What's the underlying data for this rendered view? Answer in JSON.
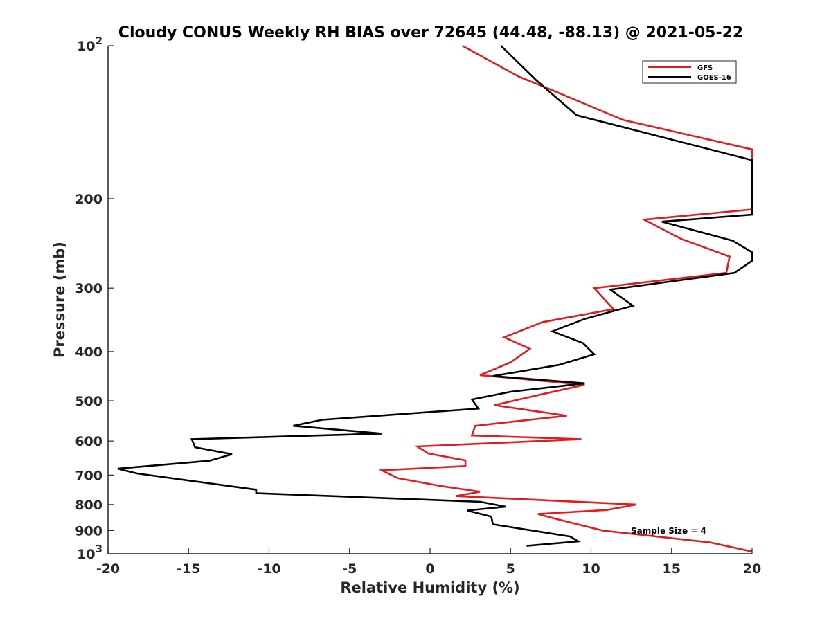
{
  "chart_data": {
    "type": "line",
    "title": "Cloudy CONUS Weekly RH BIAS over 72645 (44.48, -88.13) @ 2021-05-22",
    "xlabel": "Relative Humidity (%)",
    "ylabel": "Pressure (mb)",
    "xlim": [
      -20,
      20
    ],
    "ylim": [
      100,
      1000
    ],
    "yscale": "log",
    "y_reversed": true,
    "x_ticks": [
      "-20",
      "-15",
      "-10",
      "-5",
      "0",
      "5",
      "10",
      "15",
      "20"
    ],
    "y_ticks": [
      {
        "value": 100,
        "base": "10",
        "exp": "2"
      },
      {
        "value": 200,
        "base": "200",
        "exp": ""
      },
      {
        "value": 300,
        "base": "300",
        "exp": ""
      },
      {
        "value": 400,
        "base": "400",
        "exp": ""
      },
      {
        "value": 500,
        "base": "500",
        "exp": ""
      },
      {
        "value": 600,
        "base": "600",
        "exp": ""
      },
      {
        "value": 700,
        "base": "700",
        "exp": ""
      },
      {
        "value": 800,
        "base": "800",
        "exp": ""
      },
      {
        "value": 900,
        "base": "900",
        "exp": ""
      },
      {
        "value": 1000,
        "base": "10",
        "exp": "3"
      }
    ],
    "grid": false,
    "legend_position": "top-right",
    "annotation": "Sample Size = 4",
    "series": [
      {
        "name": "GFS",
        "color": "#e41a1c",
        "points": [
          [
            2.0,
            100
          ],
          [
            5.5,
            115
          ],
          [
            7.5,
            122
          ],
          [
            12.0,
            140
          ],
          [
            20.0,
            160
          ],
          [
            20.0,
            210
          ],
          [
            13.3,
            220
          ],
          [
            15.6,
            240
          ],
          [
            18.6,
            260
          ],
          [
            18.4,
            280
          ],
          [
            10.2,
            300
          ],
          [
            11.4,
            330
          ],
          [
            7.0,
            350
          ],
          [
            4.6,
            375
          ],
          [
            6.2,
            395
          ],
          [
            5.0,
            420
          ],
          [
            3.1,
            445
          ],
          [
            9.6,
            465
          ],
          [
            7.0,
            485
          ],
          [
            4.0,
            510
          ],
          [
            8.5,
            535
          ],
          [
            2.8,
            560
          ],
          [
            2.6,
            585
          ],
          [
            9.4,
            595
          ],
          [
            -0.8,
            615
          ],
          [
            -0.1,
            635
          ],
          [
            2.2,
            655
          ],
          [
            2.2,
            672
          ],
          [
            -3.0,
            685
          ],
          [
            -2.0,
            710
          ],
          [
            0.6,
            735
          ],
          [
            3.1,
            755
          ],
          [
            1.6,
            770
          ],
          [
            12.8,
            800
          ],
          [
            11.0,
            820
          ],
          [
            6.7,
            835
          ],
          [
            7.6,
            850
          ],
          [
            10.7,
            900
          ],
          [
            17.4,
            950
          ],
          [
            20.0,
            990
          ]
        ]
      },
      {
        "name": "GOES-16",
        "color": "#000000",
        "points": [
          [
            4.4,
            100
          ],
          [
            6.6,
            117
          ],
          [
            9.1,
            137
          ],
          [
            20.0,
            168
          ],
          [
            20.0,
            215
          ],
          [
            14.4,
            222
          ],
          [
            18.8,
            242
          ],
          [
            20.0,
            255
          ],
          [
            20.0,
            265
          ],
          [
            18.9,
            280
          ],
          [
            11.2,
            302
          ],
          [
            12.6,
            325
          ],
          [
            9.6,
            345
          ],
          [
            7.6,
            365
          ],
          [
            9.5,
            385
          ],
          [
            10.2,
            405
          ],
          [
            8.0,
            425
          ],
          [
            3.9,
            447
          ],
          [
            9.6,
            462
          ],
          [
            5.0,
            480
          ],
          [
            2.6,
            497
          ],
          [
            3.0,
            518
          ],
          [
            -6.7,
            545
          ],
          [
            -8.5,
            560
          ],
          [
            -3.0,
            580
          ],
          [
            -14.8,
            595
          ],
          [
            -14.6,
            617
          ],
          [
            -12.3,
            637
          ],
          [
            -13.7,
            656
          ],
          [
            -19.4,
            680
          ],
          [
            -18.2,
            695
          ],
          [
            -10.8,
            748
          ],
          [
            -10.8,
            760
          ],
          [
            3.1,
            790
          ],
          [
            4.7,
            808
          ],
          [
            2.3,
            822
          ],
          [
            3.8,
            845
          ],
          [
            3.9,
            875
          ],
          [
            8.7,
            925
          ],
          [
            9.2,
            945
          ],
          [
            6.0,
            965
          ]
        ]
      }
    ]
  }
}
